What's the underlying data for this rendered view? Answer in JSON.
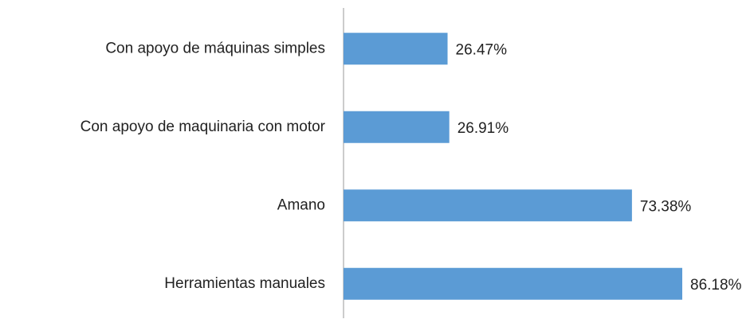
{
  "chart_data": {
    "type": "bar",
    "orientation": "horizontal",
    "categories": [
      "Con apoyo de máquinas simples",
      "Con apoyo de maquinaria con motor",
      "Amano",
      "Herramientas manuales"
    ],
    "values": [
      26.47,
      26.91,
      73.38,
      86.18
    ],
    "value_labels": [
      "26.47%",
      "26.91%",
      "73.38%",
      "86.18%"
    ],
    "color": "#5b9bd5"
  }
}
